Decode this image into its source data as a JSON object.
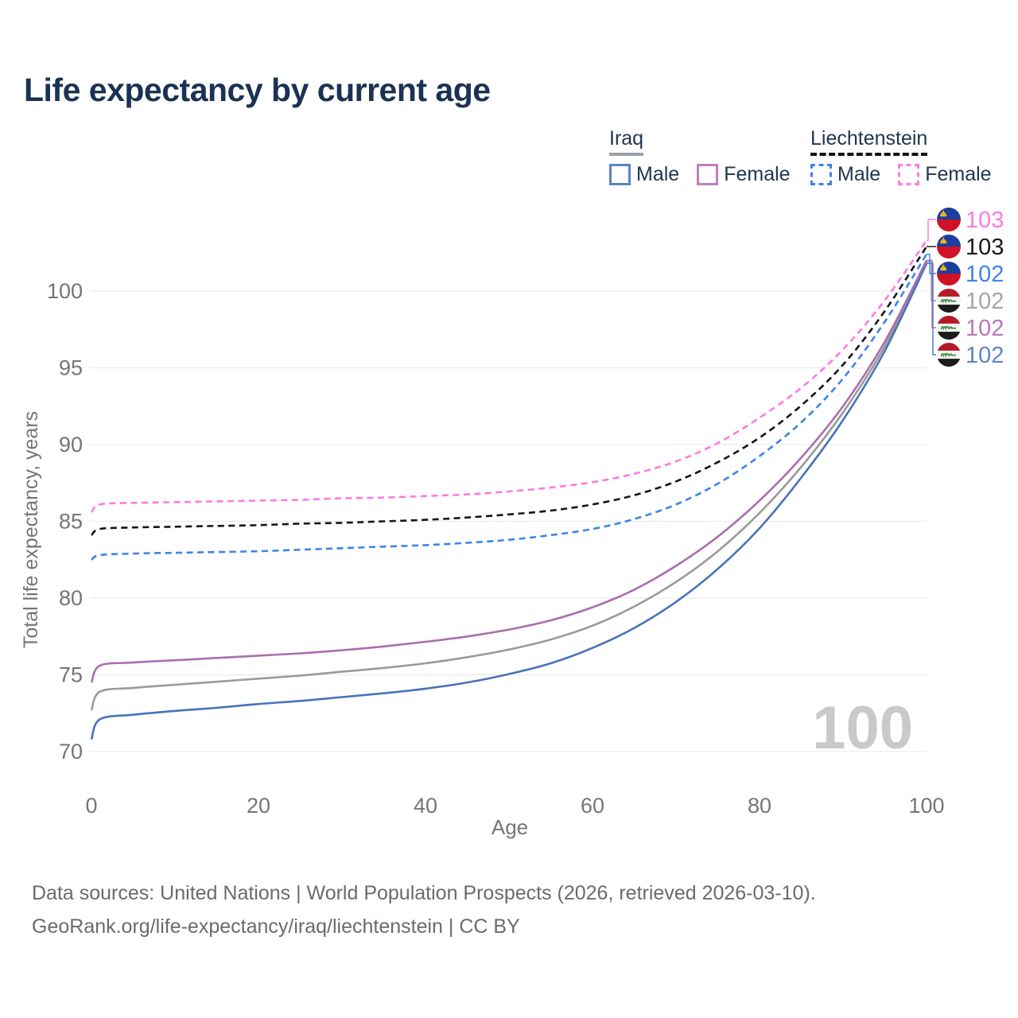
{
  "title": "Life expectancy by current age",
  "legend": {
    "groups": [
      {
        "name": "Iraq",
        "underline": "solid",
        "items": [
          {
            "label": "Male",
            "color": "#5b84c4",
            "dashed": false
          },
          {
            "label": "Female",
            "color": "#bf7fc0",
            "dashed": false
          }
        ]
      },
      {
        "name": "Liechtenstein",
        "underline": "dashed",
        "items": [
          {
            "label": "Male",
            "color": "#3d84ea",
            "dashed": true
          },
          {
            "label": "Female",
            "color": "#ff7ce1",
            "dashed": true
          }
        ]
      }
    ]
  },
  "chart_data": {
    "type": "line",
    "title": "Life expectancy by current age",
    "xlabel": "Age",
    "ylabel": "Total life expectancy, years",
    "xlim": [
      0,
      100
    ],
    "ylim": [
      70,
      103.5
    ],
    "x_ticks": [
      0,
      20,
      40,
      60,
      80,
      100
    ],
    "y_ticks": [
      70,
      75,
      80,
      85,
      90,
      95,
      100
    ],
    "grid": "horizontal-only",
    "grid_color": "#ececec",
    "tick_color": "#757575",
    "watermark": "100",
    "watermark_color": "#c9c9c9",
    "x": [
      0,
      1,
      5,
      10,
      15,
      20,
      25,
      30,
      35,
      40,
      45,
      50,
      55,
      60,
      65,
      70,
      75,
      80,
      85,
      90,
      95,
      100
    ],
    "series": [
      {
        "id": "iraq-both",
        "name": "Iraq Both sexes",
        "country": "Iraq",
        "sex": "both",
        "color": "#9a9a9a",
        "dashed": false,
        "values": [
          72.7,
          73.9,
          74.15,
          74.35,
          74.55,
          74.75,
          74.95,
          75.2,
          75.45,
          75.75,
          76.15,
          76.65,
          77.3,
          78.2,
          79.45,
          81.05,
          83.05,
          85.55,
          88.55,
          92.1,
          96.4,
          101.9
        ],
        "end_label": {
          "value": "102",
          "color": "#a5a5a5",
          "flag": "iraq",
          "row": 3
        }
      },
      {
        "id": "iraq-male",
        "name": "Iraq Male",
        "country": "Iraq",
        "sex": "male",
        "color": "#4873b9",
        "dashed": false,
        "values": [
          70.8,
          72.1,
          72.4,
          72.65,
          72.85,
          73.1,
          73.3,
          73.55,
          73.8,
          74.1,
          74.5,
          75.05,
          75.75,
          76.75,
          78.05,
          79.75,
          81.9,
          84.55,
          87.85,
          91.6,
          96.1,
          101.8
        ],
        "end_label": {
          "value": "102",
          "color": "#5d84c6",
          "flag": "iraq",
          "row": 5
        }
      },
      {
        "id": "iraq-female",
        "name": "Iraq Female",
        "country": "Iraq",
        "sex": "female",
        "color": "#a96fae",
        "dashed": false,
        "values": [
          74.5,
          75.6,
          75.8,
          75.95,
          76.1,
          76.25,
          76.4,
          76.6,
          76.85,
          77.15,
          77.5,
          77.95,
          78.55,
          79.4,
          80.55,
          82.1,
          84.0,
          86.35,
          89.15,
          92.5,
          96.7,
          102.0
        ],
        "end_label": {
          "value": "102",
          "color": "#b77ab7",
          "flag": "iraq",
          "row": 4
        }
      },
      {
        "id": "liechtenstein-male",
        "name": "Liechtenstein Male",
        "country": "Liechtenstein",
        "sex": "male",
        "color": "#3d84ea",
        "dashed": true,
        "values": [
          82.5,
          82.8,
          82.9,
          82.95,
          83.0,
          83.05,
          83.15,
          83.25,
          83.35,
          83.45,
          83.6,
          83.8,
          84.1,
          84.5,
          85.15,
          86.1,
          87.45,
          89.25,
          91.45,
          94.3,
          98.0,
          102.4
        ],
        "end_label": {
          "value": "102",
          "color": "#3d84ea",
          "flag": "liechtenstein",
          "row": 2
        }
      },
      {
        "id": "liechtenstein-both",
        "name": "Liechtenstein Both sexes",
        "country": "Liechtenstein",
        "sex": "both",
        "color": "#151515",
        "dashed": true,
        "values": [
          84.1,
          84.5,
          84.6,
          84.65,
          84.7,
          84.75,
          84.85,
          84.9,
          85.0,
          85.1,
          85.25,
          85.45,
          85.7,
          86.1,
          86.7,
          87.6,
          88.85,
          90.45,
          92.55,
          95.2,
          98.7,
          102.9
        ],
        "end_label": {
          "value": "103",
          "color": "#1a1a1a",
          "flag": "liechtenstein",
          "row": 1
        }
      },
      {
        "id": "liechtenstein-female",
        "name": "Liechtenstein Female",
        "country": "Liechtenstein",
        "sex": "female",
        "color": "#ff79e1",
        "dashed": true,
        "values": [
          85.6,
          86.1,
          86.2,
          86.25,
          86.3,
          86.35,
          86.4,
          86.5,
          86.55,
          86.65,
          86.75,
          86.95,
          87.2,
          87.55,
          88.1,
          88.9,
          90.1,
          91.75,
          93.7,
          96.2,
          99.4,
          103.3
        ],
        "end_label": {
          "value": "103",
          "color": "#ff79e1",
          "flag": "liechtenstein",
          "row": 0
        }
      }
    ],
    "flag_colors": {
      "liechtenstein": {
        "top": "#1c3f9e",
        "bottom": "#cf1225",
        "crown": "#eeb41f"
      },
      "iraq": {
        "top": "#b51a28",
        "middle": "#f4f4f4",
        "bottom": "#1b1b1b",
        "script": "#33913e"
      }
    }
  },
  "footer": {
    "line1": "Data sources: United Nations | World Population Prospects (2026, retrieved 2026-03-10).",
    "line2": "GeoRank.org/life-expectancy/iraq/liechtenstein | CC BY"
  }
}
